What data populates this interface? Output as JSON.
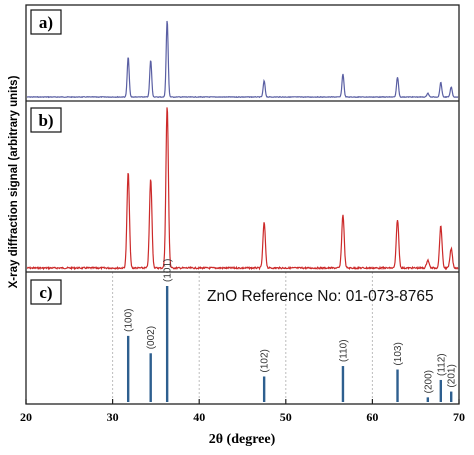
{
  "chart_data": {
    "type": "line",
    "xlabel": "2θ (degree)",
    "ylabel": "X-ray diffraction signal (arbitrary units)",
    "xlim": [
      20,
      70
    ],
    "xticks": [
      "20",
      "30",
      "40",
      "50",
      "60",
      "70"
    ],
    "panels": [
      {
        "label": "a)",
        "color": "#5a5fa3",
        "peaks": [
          {
            "x": 31.8,
            "y": 0.52
          },
          {
            "x": 34.4,
            "y": 0.48
          },
          {
            "x": 36.3,
            "y": 1.0
          },
          {
            "x": 47.5,
            "y": 0.21
          },
          {
            "x": 56.6,
            "y": 0.3
          },
          {
            "x": 62.9,
            "y": 0.26
          },
          {
            "x": 66.4,
            "y": 0.05
          },
          {
            "x": 67.9,
            "y": 0.19
          },
          {
            "x": 69.1,
            "y": 0.13
          }
        ]
      },
      {
        "label": "b)",
        "color": "#cc2a2a",
        "peaks": [
          {
            "x": 31.8,
            "y": 0.59
          },
          {
            "x": 34.4,
            "y": 0.55
          },
          {
            "x": 36.3,
            "y": 1.0
          },
          {
            "x": 47.5,
            "y": 0.28
          },
          {
            "x": 56.6,
            "y": 0.33
          },
          {
            "x": 62.9,
            "y": 0.3
          },
          {
            "x": 66.4,
            "y": 0.05
          },
          {
            "x": 67.9,
            "y": 0.26
          },
          {
            "x": 69.1,
            "y": 0.12
          }
        ]
      },
      {
        "label": "c)",
        "color": "#2e5f8f",
        "reference": "ZnO Reference No: 01-073-8765",
        "lines": [
          {
            "x": 31.8,
            "hkl": "(100)",
            "y": 0.57
          },
          {
            "x": 34.4,
            "hkl": "(002)",
            "y": 0.42
          },
          {
            "x": 36.3,
            "hkl": "(101)",
            "y": 1.0
          },
          {
            "x": 47.5,
            "hkl": "(102)",
            "y": 0.22
          },
          {
            "x": 56.6,
            "hkl": "(110)",
            "y": 0.31
          },
          {
            "x": 62.9,
            "hkl": "(103)",
            "y": 0.28
          },
          {
            "x": 66.4,
            "hkl": "(200)",
            "y": 0.04
          },
          {
            "x": 67.9,
            "hkl": "(112)",
            "y": 0.19
          },
          {
            "x": 69.1,
            "hkl": "(201)",
            "y": 0.09
          }
        ]
      }
    ]
  }
}
